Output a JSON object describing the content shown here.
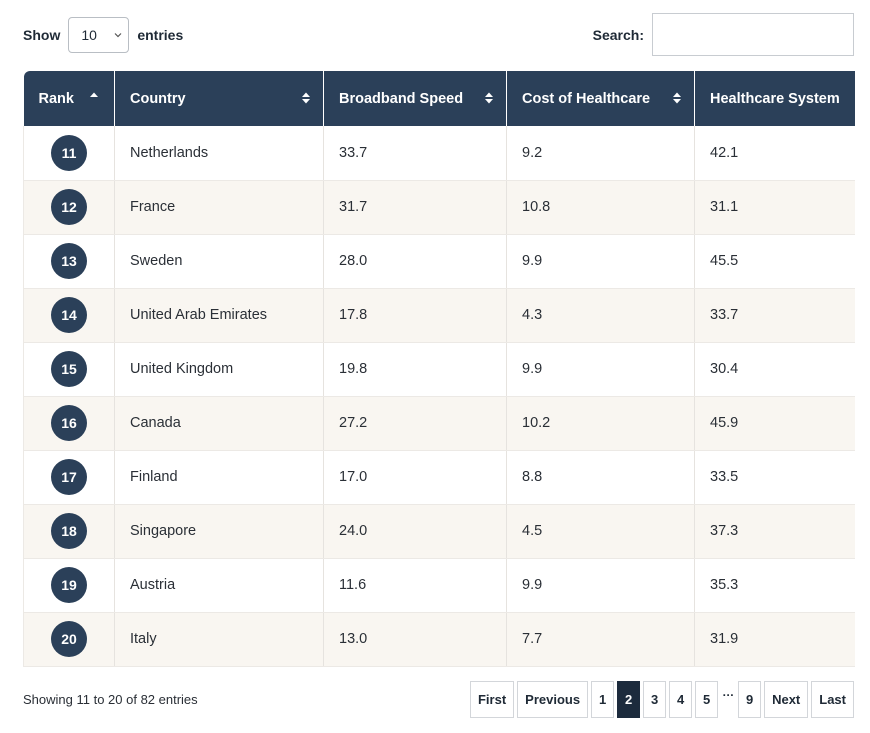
{
  "length": {
    "prefix": "Show",
    "value": "10",
    "suffix": "entries"
  },
  "search": {
    "label": "Search:",
    "value": ""
  },
  "columns": [
    {
      "label": "Rank",
      "sort": "asc"
    },
    {
      "label": "Country",
      "sort": "both"
    },
    {
      "label": "Broadband Speed",
      "sort": "both"
    },
    {
      "label": "Cost of Healthcare",
      "sort": "both"
    },
    {
      "label": "Healthcare System",
      "sort": "none"
    }
  ],
  "rows": [
    {
      "rank": "11",
      "country": "Netherlands",
      "broadband": "33.7",
      "cost": "9.2",
      "system": "42.1"
    },
    {
      "rank": "12",
      "country": "France",
      "broadband": "31.7",
      "cost": "10.8",
      "system": "31.1"
    },
    {
      "rank": "13",
      "country": "Sweden",
      "broadband": "28.0",
      "cost": "9.9",
      "system": "45.5"
    },
    {
      "rank": "14",
      "country": "United Arab Emirates",
      "broadband": "17.8",
      "cost": "4.3",
      "system": "33.7"
    },
    {
      "rank": "15",
      "country": "United Kingdom",
      "broadband": "19.8",
      "cost": "9.9",
      "system": "30.4"
    },
    {
      "rank": "16",
      "country": "Canada",
      "broadband": "27.2",
      "cost": "10.2",
      "system": "45.9"
    },
    {
      "rank": "17",
      "country": "Finland",
      "broadband": "17.0",
      "cost": "8.8",
      "system": "33.5"
    },
    {
      "rank": "18",
      "country": "Singapore",
      "broadband": "24.0",
      "cost": "4.5",
      "system": "37.3"
    },
    {
      "rank": "19",
      "country": "Austria",
      "broadband": "11.6",
      "cost": "9.9",
      "system": "35.3"
    },
    {
      "rank": "20",
      "country": "Italy",
      "broadband": "13.0",
      "cost": "7.7",
      "system": "31.9"
    }
  ],
  "info": "Showing 11 to 20 of 82 entries",
  "pagination": {
    "first": "First",
    "previous": "Previous",
    "pages": [
      "1",
      "2",
      "3",
      "4",
      "5"
    ],
    "current": "2",
    "ellipsis": "…",
    "last_page": "9",
    "next": "Next",
    "last": "Last"
  },
  "colors": {
    "header": "#2b4059",
    "stripe": "#f9f6f1",
    "current_page": "#1c2b3d"
  }
}
